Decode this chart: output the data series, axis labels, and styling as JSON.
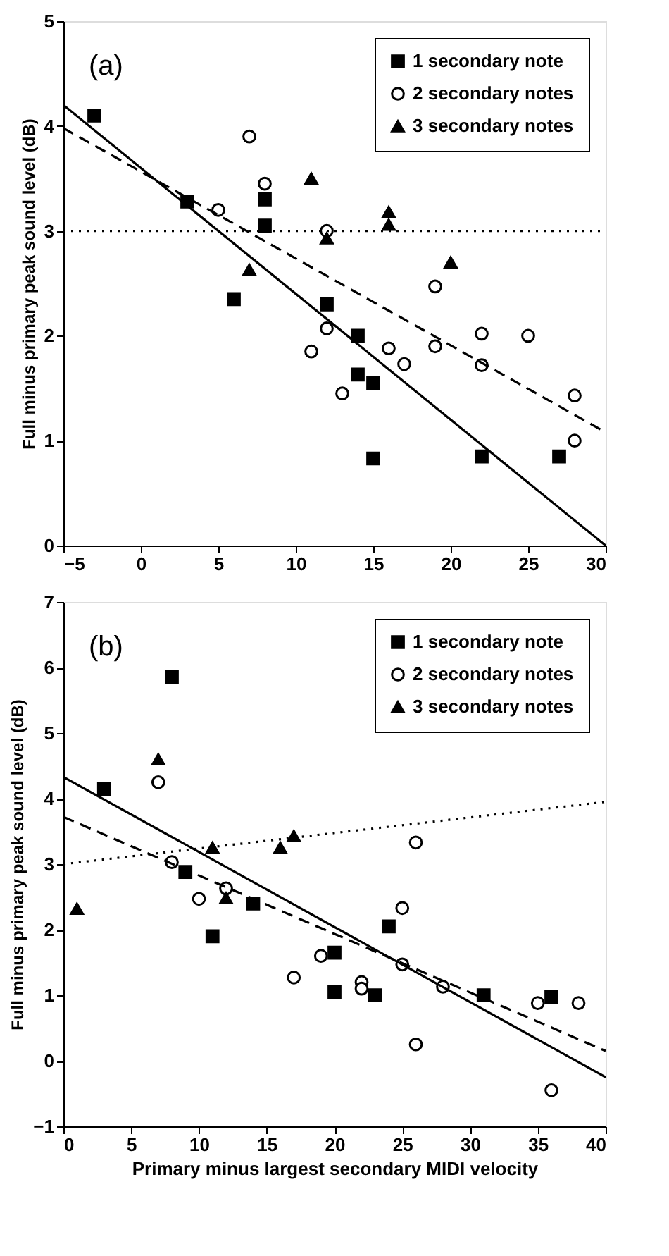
{
  "chart_data": [
    {
      "type": "scatter",
      "ylabel": "Full minus primary peak sound level (dB)",
      "xlim": [
        -5,
        30
      ],
      "ylim": [
        0,
        5
      ],
      "xticks": [
        -5,
        0,
        5,
        10,
        15,
        20,
        25,
        30
      ],
      "yticks": [
        0,
        1,
        2,
        3,
        4,
        5
      ],
      "grid": false,
      "legend": "top right",
      "annotations": [
        "(a)"
      ],
      "series": [
        {
          "name": "1 secondary note",
          "color": "#000000",
          "marker": "square",
          "x": [
            -3,
            3,
            8,
            8,
            6,
            12,
            14,
            14,
            15,
            15,
            22,
            27
          ],
          "values": [
            4.1,
            3.28,
            3.3,
            3.05,
            2.35,
            2.3,
            2.0,
            1.63,
            1.55,
            0.83,
            0.85,
            0.85
          ]
        },
        {
          "name": "2 secondary notes",
          "color": "#000000",
          "marker": "circle",
          "x": [
            7,
            5,
            8,
            12,
            12,
            11,
            13,
            16,
            17,
            19,
            19,
            22,
            22,
            25,
            28,
            28
          ],
          "values": [
            3.9,
            3.2,
            3.45,
            3.0,
            2.07,
            1.85,
            1.45,
            1.88,
            1.73,
            2.47,
            1.9,
            2.02,
            1.72,
            2.0,
            1.43,
            1.0
          ]
        },
        {
          "name": "3 secondary notes",
          "color": "#000000",
          "marker": "triangle",
          "x": [
            7,
            11,
            12,
            16,
            16,
            20
          ],
          "values": [
            2.63,
            3.5,
            2.93,
            3.18,
            3.06,
            2.7
          ]
        },
        {
          "type": "line",
          "color": "#000000",
          "marker": "none",
          "line_style": "solid",
          "x": [
            -5,
            30
          ],
          "values": [
            4.2,
            0
          ]
        },
        {
          "type": "line",
          "color": "#000000",
          "marker": "none",
          "line_style": "dashed",
          "x": [
            -5,
            30
          ],
          "values": [
            3.98,
            1.08
          ]
        },
        {
          "type": "line",
          "color": "#000000",
          "marker": "none",
          "line_style": "dotted",
          "x": [
            -5,
            30
          ],
          "values": [
            3.0,
            3.0
          ]
        }
      ]
    },
    {
      "type": "scatter",
      "xlabel": "Primary minus largest secondary MIDI velocity",
      "ylabel": "Full minus primary peak sound level (dB)",
      "xlim": [
        0,
        40
      ],
      "ylim": [
        -1,
        7
      ],
      "xticks": [
        0,
        5,
        10,
        15,
        20,
        25,
        30,
        35,
        40
      ],
      "yticks": [
        -1,
        0,
        1,
        2,
        3,
        4,
        5,
        6,
        7
      ],
      "grid": false,
      "legend": "top right",
      "annotations": [
        "(b)"
      ],
      "series": [
        {
          "name": "1 secondary note",
          "color": "#000000",
          "marker": "square",
          "x": [
            3,
            8,
            9,
            11,
            14,
            20,
            20,
            23,
            24,
            31,
            36
          ],
          "values": [
            4.15,
            5.85,
            2.88,
            1.9,
            2.4,
            1.65,
            1.05,
            1.0,
            2.05,
            1.0,
            0.97
          ]
        },
        {
          "name": "2 secondary notes",
          "color": "#000000",
          "marker": "circle",
          "x": [
            7,
            8,
            10,
            12,
            17,
            19,
            22,
            22,
            25,
            25,
            26,
            26,
            28,
            35,
            36,
            38
          ],
          "values": [
            4.25,
            3.03,
            2.47,
            2.63,
            1.27,
            1.6,
            1.2,
            1.1,
            1.47,
            2.33,
            3.33,
            0.25,
            1.13,
            0.88,
            -0.45,
            0.88
          ]
        },
        {
          "name": "3 secondary notes",
          "color": "#000000",
          "marker": "triangle",
          "x": [
            1,
            7,
            11,
            12,
            16,
            17
          ],
          "values": [
            2.32,
            4.6,
            3.25,
            2.48,
            3.25,
            3.43
          ]
        },
        {
          "type": "line",
          "color": "#000000",
          "marker": "none",
          "line_style": "solid",
          "x": [
            0,
            40
          ],
          "values": [
            4.33,
            -0.25
          ]
        },
        {
          "type": "line",
          "color": "#000000",
          "marker": "none",
          "line_style": "dashed",
          "x": [
            0,
            40
          ],
          "values": [
            3.72,
            0.15
          ]
        },
        {
          "type": "line",
          "color": "#000000",
          "marker": "none",
          "line_style": "dotted",
          "x": [
            0,
            40
          ],
          "values": [
            3.0,
            3.95
          ]
        }
      ]
    }
  ]
}
